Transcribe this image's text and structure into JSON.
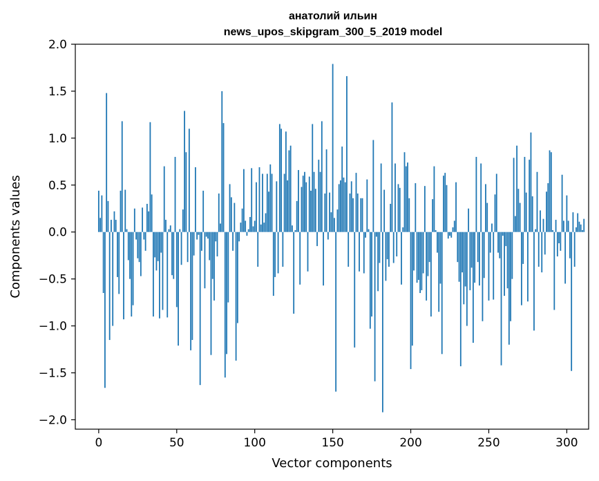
{
  "chart_data": {
    "type": "bar",
    "title": [
      "анатолий ильин",
      "news_upos_skipgram_300_5_2019 model"
    ],
    "xlabel": "Vector components",
    "ylabel": "Components values",
    "xlim": [
      -15,
      314
    ],
    "ylim": [
      -2.1,
      2.0
    ],
    "xticks": [
      0,
      50,
      100,
      150,
      200,
      250,
      300
    ],
    "xtick_labels": [
      "0",
      "50",
      "100",
      "150",
      "200",
      "250",
      "300"
    ],
    "yticks": [
      2.0,
      1.5,
      1.0,
      0.5,
      0.0,
      -0.5,
      -1.0,
      -1.5,
      -2.0
    ],
    "ytick_labels": [
      "2.0",
      "1.5",
      "1.0",
      "0.5",
      "0.0",
      "−0.5",
      "−1.0",
      "−1.5",
      "−2.0"
    ],
    "grid": false,
    "bar_color": "#1f77b4",
    "bar_width": 0.8,
    "values": [
      0.44,
      0.15,
      0.39,
      -0.65,
      -1.66,
      1.48,
      0.33,
      -1.15,
      0.13,
      -1.0,
      0.22,
      0.13,
      -0.48,
      -0.66,
      0.44,
      1.18,
      -0.93,
      0.45,
      0.03,
      -0.3,
      -0.5,
      -0.9,
      -0.78,
      0.25,
      -0.08,
      -0.28,
      -0.32,
      -0.47,
      0.26,
      -0.08,
      -0.2,
      0.3,
      0.22,
      1.17,
      0.4,
      -0.9,
      -0.27,
      -0.41,
      -0.31,
      -0.92,
      -0.22,
      -0.83,
      0.7,
      0.13,
      -0.91,
      0.03,
      0.07,
      -0.46,
      -0.5,
      0.8,
      -0.8,
      -1.21,
      0.03,
      -0.35,
      0.24,
      1.29,
      0.85,
      -0.32,
      1.1,
      -1.26,
      -1.15,
      -0.25,
      0.69,
      -0.08,
      -0.03,
      -1.63,
      -0.2,
      0.44,
      -0.6,
      -0.05,
      -0.07,
      -0.3,
      -1.31,
      -0.5,
      -0.73,
      -0.1,
      -0.26,
      0.41,
      0.09,
      1.5,
      1.16,
      -1.55,
      -1.3,
      -0.75,
      0.51,
      0.37,
      -0.2,
      0.31,
      -1.37,
      -0.97,
      -0.1,
      0.1,
      0.25,
      0.67,
      0.12,
      -0.04,
      0.03,
      0.16,
      0.68,
      0.06,
      0.12,
      0.53,
      -0.37,
      0.69,
      0.08,
      0.62,
      0.1,
      0.2,
      0.62,
      0.43,
      0.72,
      0.62,
      -0.68,
      -0.48,
      0.54,
      -0.44,
      1.15,
      1.1,
      -0.37,
      0.62,
      1.07,
      0.55,
      0.87,
      0.92,
      0.07,
      -0.87,
      0.02,
      0.33,
      0.66,
      -0.56,
      0.48,
      0.6,
      0.64,
      0.53,
      -0.42,
      0.59,
      0.44,
      1.15,
      0.64,
      0.46,
      -0.15,
      0.77,
      0.64,
      1.18,
      -0.57,
      0.41,
      0.88,
      -0.08,
      0.42,
      0.21,
      1.79,
      0.15,
      -1.7,
      0.24,
      0.51,
      0.55,
      0.91,
      0.58,
      0.53,
      1.66,
      -0.37,
      0.41,
      0.54,
      0.36,
      -1.23,
      0.63,
      0.41,
      -0.42,
      0.36,
      0.36,
      -0.44,
      -0.06,
      0.56,
      0.03,
      -1.03,
      -0.9,
      0.98,
      -1.59,
      -0.05,
      -0.63,
      -0.33,
      0.73,
      -1.92,
      0.45,
      -0.52,
      -0.29,
      -0.37,
      0.3,
      1.38,
      -0.33,
      0.73,
      -0.26,
      0.51,
      0.47,
      -0.56,
      0.05,
      0.85,
      0.7,
      0.74,
      0.36,
      -1.46,
      -1.21,
      -0.41,
      0.52,
      -0.54,
      -0.51,
      -0.65,
      -0.62,
      -0.44,
      0.49,
      -0.73,
      -0.47,
      -0.32,
      -0.9,
      0.35,
      0.7,
      0.02,
      -0.22,
      -0.85,
      -0.55,
      -1.3,
      0.6,
      0.63,
      0.5,
      -0.07,
      -0.04,
      -0.06,
      0.05,
      0.12,
      0.53,
      -0.32,
      -0.53,
      -1.43,
      -0.43,
      -0.77,
      -0.58,
      -1.0,
      0.25,
      -0.62,
      -0.38,
      -1.18,
      -0.54,
      0.8,
      -0.32,
      -0.57,
      0.73,
      -0.95,
      -0.49,
      0.51,
      0.31,
      -0.73,
      -0.22,
      0.09,
      -0.72,
      0.4,
      0.62,
      -0.22,
      -0.28,
      -1.42,
      -0.04,
      -0.68,
      -0.15,
      -0.6,
      -1.2,
      -0.95,
      -0.5,
      0.79,
      0.17,
      0.92,
      0.46,
      0.31,
      -0.78,
      -0.34,
      0.8,
      0.42,
      -0.74,
      0.77,
      1.06,
      0.38,
      -1.05,
      0.03,
      0.64,
      -0.37,
      0.23,
      -0.43,
      0.14,
      -0.24,
      0.43,
      0.52,
      0.87,
      0.85,
      0.02,
      -0.83,
      0.13,
      -0.26,
      -0.12,
      -0.2,
      0.61,
      0.12,
      -0.55,
      0.39,
      0.12,
      -0.28,
      -1.48,
      0.21,
      -0.37,
      0.05,
      0.2,
      0.11,
      0.08,
      0.02,
      0.14
    ]
  }
}
